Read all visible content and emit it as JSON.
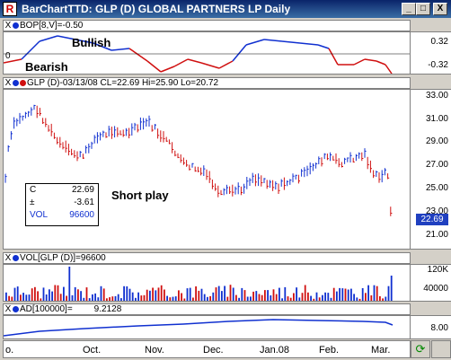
{
  "window": {
    "title": "BarChartTTD: GLP (D) GLOBAL PARTNERS LP Daily",
    "minimize": "_",
    "maximize": "□",
    "close": "X"
  },
  "bop": {
    "close_label": "X",
    "header": "BOP[8,V]=-0.50",
    "dot_color": "#1030d0",
    "bullish": "Bullish",
    "bearish": "Bearish",
    "zero_label": "0",
    "axis_labels": [
      "0.32",
      "-0.32"
    ]
  },
  "price": {
    "close_label": "X",
    "header": "GLP (D)-03/13/08 CL=22.69 Hi=25.90 Lo=20.72",
    "dot_colors": [
      "#1030d0",
      "#d01010"
    ],
    "axis_labels": [
      "33.00",
      "31.00",
      "29.00",
      "27.00",
      "25.00",
      "23.00",
      "21.00"
    ],
    "last_price": "22.69",
    "annotation": "Short play",
    "info": {
      "c_label": "C",
      "c_value": "22.69",
      "chg_label": "±",
      "chg_value": "-3.61",
      "vol_label": "VOL",
      "vol_value": "96600"
    }
  },
  "volume": {
    "close_label": "X",
    "header": "VOL[GLP (D)]=96600",
    "axis_labels": [
      "120K",
      "40000"
    ]
  },
  "ad": {
    "close_label": "X",
    "header": "AD[100000]=",
    "header_value": "9.2128",
    "axis_labels": [
      "8.00"
    ]
  },
  "dates": [
    "o.",
    "Oct.",
    "Nov.",
    "Dec.",
    "Jan.08",
    "Feb.",
    "Mar."
  ],
  "colors": {
    "up": "#1030d0",
    "down": "#d01010"
  }
}
